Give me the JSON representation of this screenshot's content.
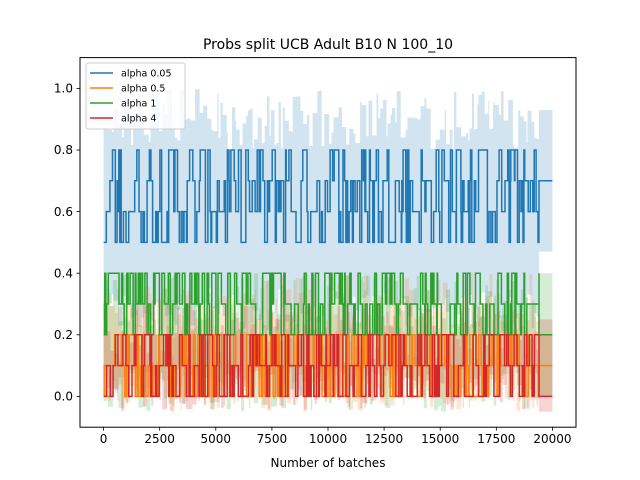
{
  "chart_data": {
    "type": "line",
    "title": "Probs split UCB Adult B10 N 100_10",
    "xlabel": "Number of batches",
    "ylabel": "",
    "xlim": [
      -1050,
      21050
    ],
    "ylim": [
      -0.1,
      1.1
    ],
    "xticks": [
      0,
      2500,
      5000,
      7500,
      10000,
      12500,
      15000,
      17500,
      20000
    ],
    "yticks": [
      0.0,
      0.2,
      0.4,
      0.6,
      0.8,
      1.0
    ],
    "xtick_labels": [
      "0",
      "2500",
      "5000",
      "7500",
      "10000",
      "12500",
      "15000",
      "17500",
      "20000"
    ],
    "ytick_labels": [
      "0.0",
      "0.2",
      "0.4",
      "0.6",
      "0.8",
      "1.0"
    ],
    "grid": false,
    "legend_position": "top-left",
    "series": [
      {
        "name": "alpha 0.05",
        "color": "#1f77b4",
        "levels": [
          0.5,
          0.6,
          0.7,
          0.8
        ],
        "band": [
          0.2,
          1.0
        ],
        "final": 0.7,
        "final_band": [
          0.47,
          0.93
        ]
      },
      {
        "name": "alpha 0.5",
        "color": "#ff7f0e",
        "levels": [
          0.0,
          0.1,
          0.2
        ],
        "band": [
          -0.05,
          0.4
        ],
        "final": 0.1,
        "final_band": [
          0.0,
          0.2
        ]
      },
      {
        "name": "alpha 1",
        "color": "#2ca02c",
        "levels": [
          0.2,
          0.3,
          0.4
        ],
        "band": [
          -0.05,
          0.4
        ],
        "final": 0.2,
        "final_band": [
          0.0,
          0.4
        ]
      },
      {
        "name": "alpha 4",
        "color": "#d62728",
        "levels": [
          0.0,
          0.1,
          0.2
        ],
        "band": [
          -0.05,
          0.3
        ],
        "final": 0.0,
        "final_band": [
          -0.05,
          0.25
        ]
      }
    ],
    "x_end_dense": 19400,
    "x_end": 20000
  }
}
